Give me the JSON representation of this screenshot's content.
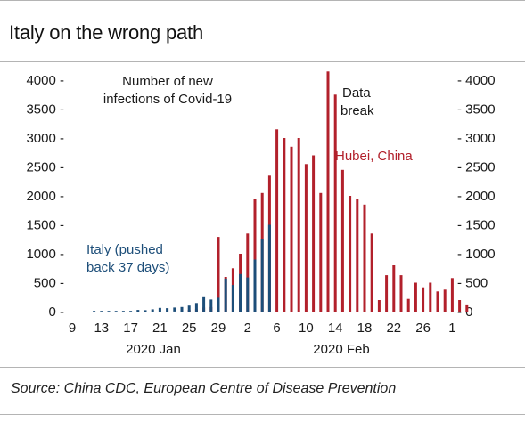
{
  "title": "Italy on the wrong path",
  "source": "Source: China CDC, European Centre of Disease Prevention",
  "chart_data": {
    "type": "bar",
    "title": "Italy on the wrong path",
    "x_ticks": [
      "9",
      "13",
      "17",
      "21",
      "25",
      "29",
      "2",
      "6",
      "10",
      "14",
      "18",
      "22",
      "26",
      "1"
    ],
    "x_month_labels": [
      "2020 Jan",
      "2020 Feb"
    ],
    "y_ticks_left": [
      "4000 -",
      "3500 -",
      "3000 -",
      "2500 -",
      "2000 -",
      "1500 -",
      "1000 -",
      "500 -",
      "0 -"
    ],
    "y_ticks_right": [
      "- 4000",
      "- 3500",
      "- 3000",
      "- 2500",
      "- 2000",
      "- 1500",
      "- 1000",
      "- 500",
      "- 0"
    ],
    "ylim": [
      0,
      4000
    ],
    "grid": false,
    "legend": "none",
    "x_start": "2020-01-09",
    "annotations": {
      "subtitle_line1": "Number of new",
      "subtitle_line2": "infections of Covid-19",
      "data_break_line1": "Data",
      "data_break_line2": "break",
      "hubei_label": "Hubei, China",
      "italy_line1": "Italy (pushed",
      "italy_line2": "back 37 days)"
    },
    "series": [
      {
        "name": "Hubei, China",
        "color": "#b2202b",
        "start_date": "2020-01-25",
        "values": [
          30,
          40,
          70,
          80,
          1290,
          600,
          750,
          1000,
          1350,
          1950,
          2050,
          2350,
          3150,
          3000,
          2850,
          3000,
          2550,
          2700,
          2050,
          4150,
          3750,
          2450,
          2000,
          1950,
          1850,
          1350,
          200,
          630,
          800,
          630,
          220,
          500,
          420,
          500,
          350,
          380,
          580,
          200,
          110
        ]
      },
      {
        "name": "Italy (pushed back 37 days)",
        "color": "#1d4e79",
        "start_date": "2020-01-12",
        "values": [
          5,
          5,
          5,
          10,
          10,
          10,
          30,
          25,
          40,
          65,
          60,
          70,
          80,
          105,
          150,
          250,
          210,
          240,
          570,
          460,
          650,
          590,
          900,
          1250,
          1500
        ]
      }
    ]
  }
}
